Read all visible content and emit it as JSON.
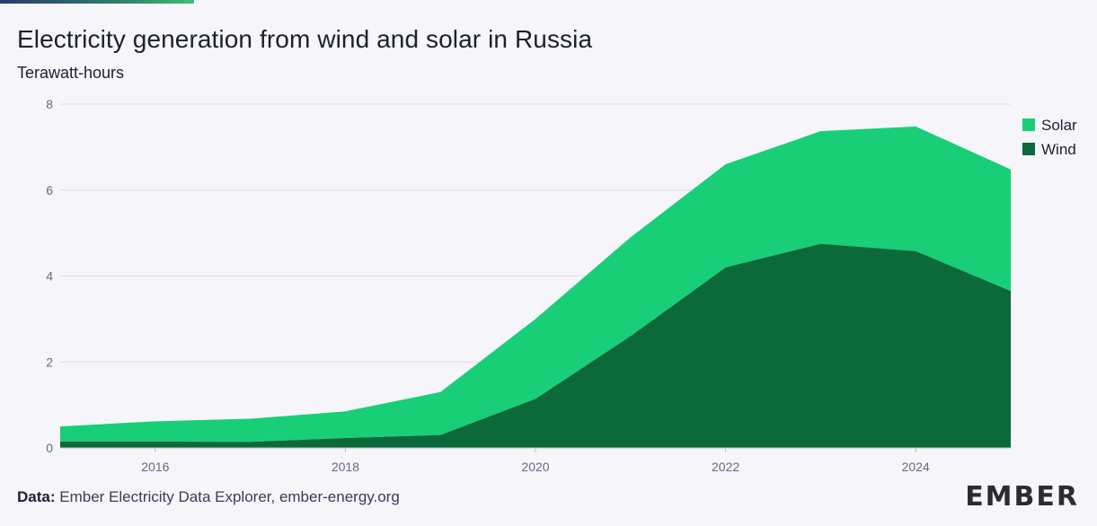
{
  "title": "Electricity generation from wind and solar in Russia",
  "subtitle": "Terawatt-hours",
  "source_label": "Data:",
  "source_text": "Ember Electricity Data Explorer, ember-energy.org",
  "logo": "EMBER",
  "colors": {
    "solar": "#18ce77",
    "wind": "#0c693a",
    "gridline": "#dcdde6",
    "accent_bar": "#2f7d6a"
  },
  "chart_data": {
    "type": "area",
    "stacked": true,
    "x": [
      2015,
      2016,
      2017,
      2018,
      2019,
      2020,
      2021,
      2022,
      2023,
      2024,
      2025
    ],
    "series": [
      {
        "name": "Wind",
        "values": [
          0.15,
          0.15,
          0.14,
          0.23,
          0.3,
          1.14,
          2.6,
          4.2,
          4.75,
          4.58,
          3.65
        ]
      },
      {
        "name": "Solar",
        "values": [
          0.35,
          0.47,
          0.54,
          0.62,
          1.0,
          1.86,
          2.3,
          2.4,
          2.62,
          2.9,
          2.83
        ]
      }
    ],
    "xticks": [
      "2016",
      "2018",
      "2020",
      "2022",
      "2024"
    ],
    "yticks": [
      "0",
      "2",
      "4",
      "6",
      "8"
    ],
    "xlim": [
      2015,
      2025
    ],
    "ylim": [
      0,
      8
    ],
    "legend": [
      "Solar",
      "Wind"
    ],
    "legend_position": "right",
    "grid": true
  }
}
